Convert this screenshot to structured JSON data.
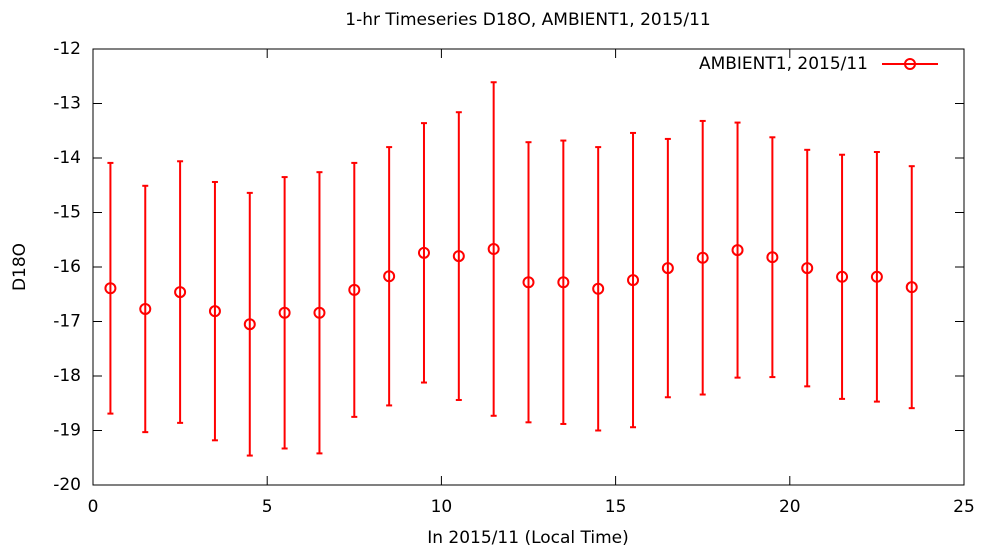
{
  "chart_data": {
    "type": "errorbar",
    "title": "1-hr Timeseries D18O, AMBIENT1, 2015/11",
    "x_label": "In 2015/11 (Local Time)",
    "y_label": "D18O",
    "legend": "top-right",
    "x": [
      0.5,
      1.5,
      2.5,
      3.5,
      4.5,
      5.5,
      6.5,
      7.5,
      8.5,
      9.5,
      10.5,
      11.5,
      12.5,
      13.5,
      14.5,
      15.5,
      16.5,
      17.5,
      18.5,
      19.5,
      20.5,
      21.5,
      22.5,
      23.5
    ],
    "series": [
      {
        "name": "AMBIENT1, 2015/11",
        "color": "#ff0000",
        "values": [
          -16.39,
          -16.77,
          -16.46,
          -16.81,
          -17.05,
          -16.84,
          -16.84,
          -16.42,
          -16.17,
          -15.74,
          -15.8,
          -15.67,
          -16.28,
          -16.28,
          -16.4,
          -16.24,
          -16.02,
          -15.83,
          -15.69,
          -15.82,
          -16.02,
          -16.18,
          -16.18,
          -16.37
        ],
        "errors": [
          2.3,
          2.26,
          2.4,
          2.37,
          2.41,
          2.49,
          2.58,
          2.33,
          2.37,
          2.38,
          2.64,
          3.06,
          2.57,
          2.6,
          2.6,
          2.7,
          2.37,
          2.51,
          2.34,
          2.2,
          2.17,
          2.24,
          2.29,
          2.22
        ]
      }
    ],
    "xlim": [
      0,
      25
    ],
    "xticks": [
      0,
      5,
      10,
      15,
      20,
      25
    ],
    "ylim": [
      -20,
      -12
    ],
    "yticks": [
      -20,
      -19,
      -18,
      -17,
      -16,
      -15,
      -14,
      -13,
      -12
    ]
  }
}
